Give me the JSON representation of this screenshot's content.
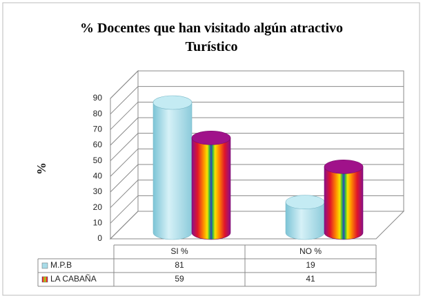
{
  "chart_data": {
    "type": "bar3d",
    "title": "% Docentes que han visitado algún atractivo Turístico",
    "y_label": "%",
    "categories": [
      "SI %",
      "NO %"
    ],
    "series": [
      {
        "name": "M.P.B",
        "color": "#a8dce8",
        "values": [
          81,
          19
        ]
      },
      {
        "name": "LA CABAÑA",
        "color": "#a0128a",
        "values": [
          59,
          41
        ]
      }
    ],
    "ylim": [
      0,
      90
    ],
    "yticks": [
      0,
      10,
      20,
      30,
      40,
      50,
      60,
      70,
      80,
      90
    ],
    "grid": true,
    "data_table": true
  }
}
